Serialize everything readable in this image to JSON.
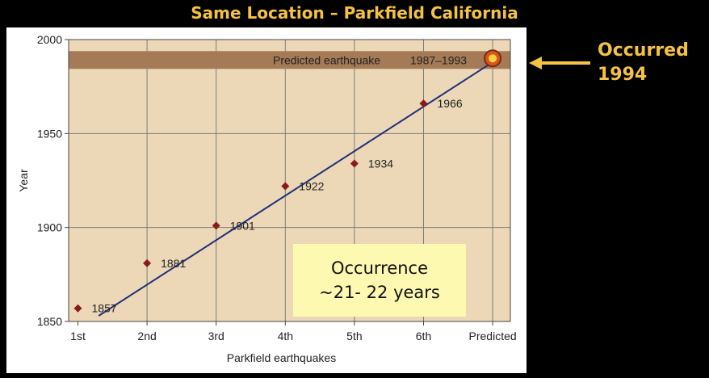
{
  "title": "Same Location – Parkfield California",
  "callout": {
    "line1": "Occurred",
    "line2": "1994",
    "color": "#f5c242"
  },
  "annotation": {
    "line1": "Occurrence",
    "line2": "~21- 22 years",
    "background": "#fdf9b1"
  },
  "chart_data": {
    "type": "scatter",
    "xlabel": "Parkfield earthquakes",
    "ylabel": "Year",
    "categories": [
      "1st",
      "2nd",
      "3rd",
      "4th",
      "5th",
      "6th",
      "Predicted"
    ],
    "ylim": [
      1850,
      2000
    ],
    "yticks": [
      1850,
      1900,
      1950,
      2000
    ],
    "grid": true,
    "points": [
      {
        "x": "1st",
        "y": 1857,
        "label": "1857"
      },
      {
        "x": "2nd",
        "y": 1881,
        "label": "1881"
      },
      {
        "x": "3rd",
        "y": 1901,
        "label": "1901"
      },
      {
        "x": "4th",
        "y": 1922,
        "label": "1922"
      },
      {
        "x": "5th",
        "y": 1934,
        "label": "1934"
      },
      {
        "x": "6th",
        "y": 1966,
        "label": "1966"
      }
    ],
    "trend_line": {
      "from": [
        0.3,
        1853
      ],
      "to": [
        6,
        1988
      ]
    },
    "predicted_band": {
      "y_range": [
        1987,
        1993
      ],
      "label": "Predicted earthquake",
      "range_label": "1987–1993"
    },
    "predicted_marker": {
      "x": "Predicted",
      "y": 1990
    },
    "colors": {
      "plot_background": "#ecd8b6",
      "band": "#a57a56",
      "points": "#8b1a1a",
      "trend_line": "#1f2f7a",
      "marker_outer": "#d9541e",
      "marker_inner": "#f6d43d"
    }
  }
}
